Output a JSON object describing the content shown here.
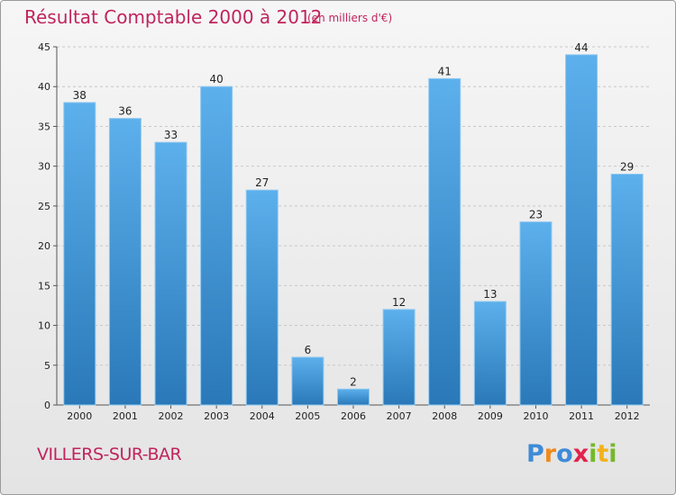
{
  "title": "Résultat Comptable 2000 à 2012",
  "subtitle": "(en milliers d'€)",
  "town": "VILLERS-SUR-BAR",
  "logo": {
    "letters": [
      "P",
      "r",
      "o",
      "x",
      "i",
      "t",
      "i"
    ],
    "colors": [
      "#3e8bd8",
      "#f08a1c",
      "#3e8bd8",
      "#e2224b",
      "#75b82b",
      "#f2b21c",
      "#75b82b"
    ]
  },
  "colors": {
    "bar": "#4aa3e3",
    "bar_dark": "#2a75b5",
    "title": "#c0245c"
  },
  "chart_data": {
    "type": "bar",
    "title": "Résultat Comptable 2000 à 2012",
    "subtitle": "(en milliers d'€)",
    "categories": [
      "2000",
      "2001",
      "2002",
      "2003",
      "2004",
      "2005",
      "2006",
      "2007",
      "2008",
      "2009",
      "2010",
      "2011",
      "2012"
    ],
    "values": [
      38,
      36,
      33,
      40,
      27,
      6,
      2,
      12,
      41,
      13,
      23,
      44,
      29
    ],
    "ylim": [
      0,
      45
    ],
    "yticks": [
      0,
      5,
      10,
      15,
      20,
      25,
      30,
      35,
      40,
      45
    ],
    "grid": true
  }
}
